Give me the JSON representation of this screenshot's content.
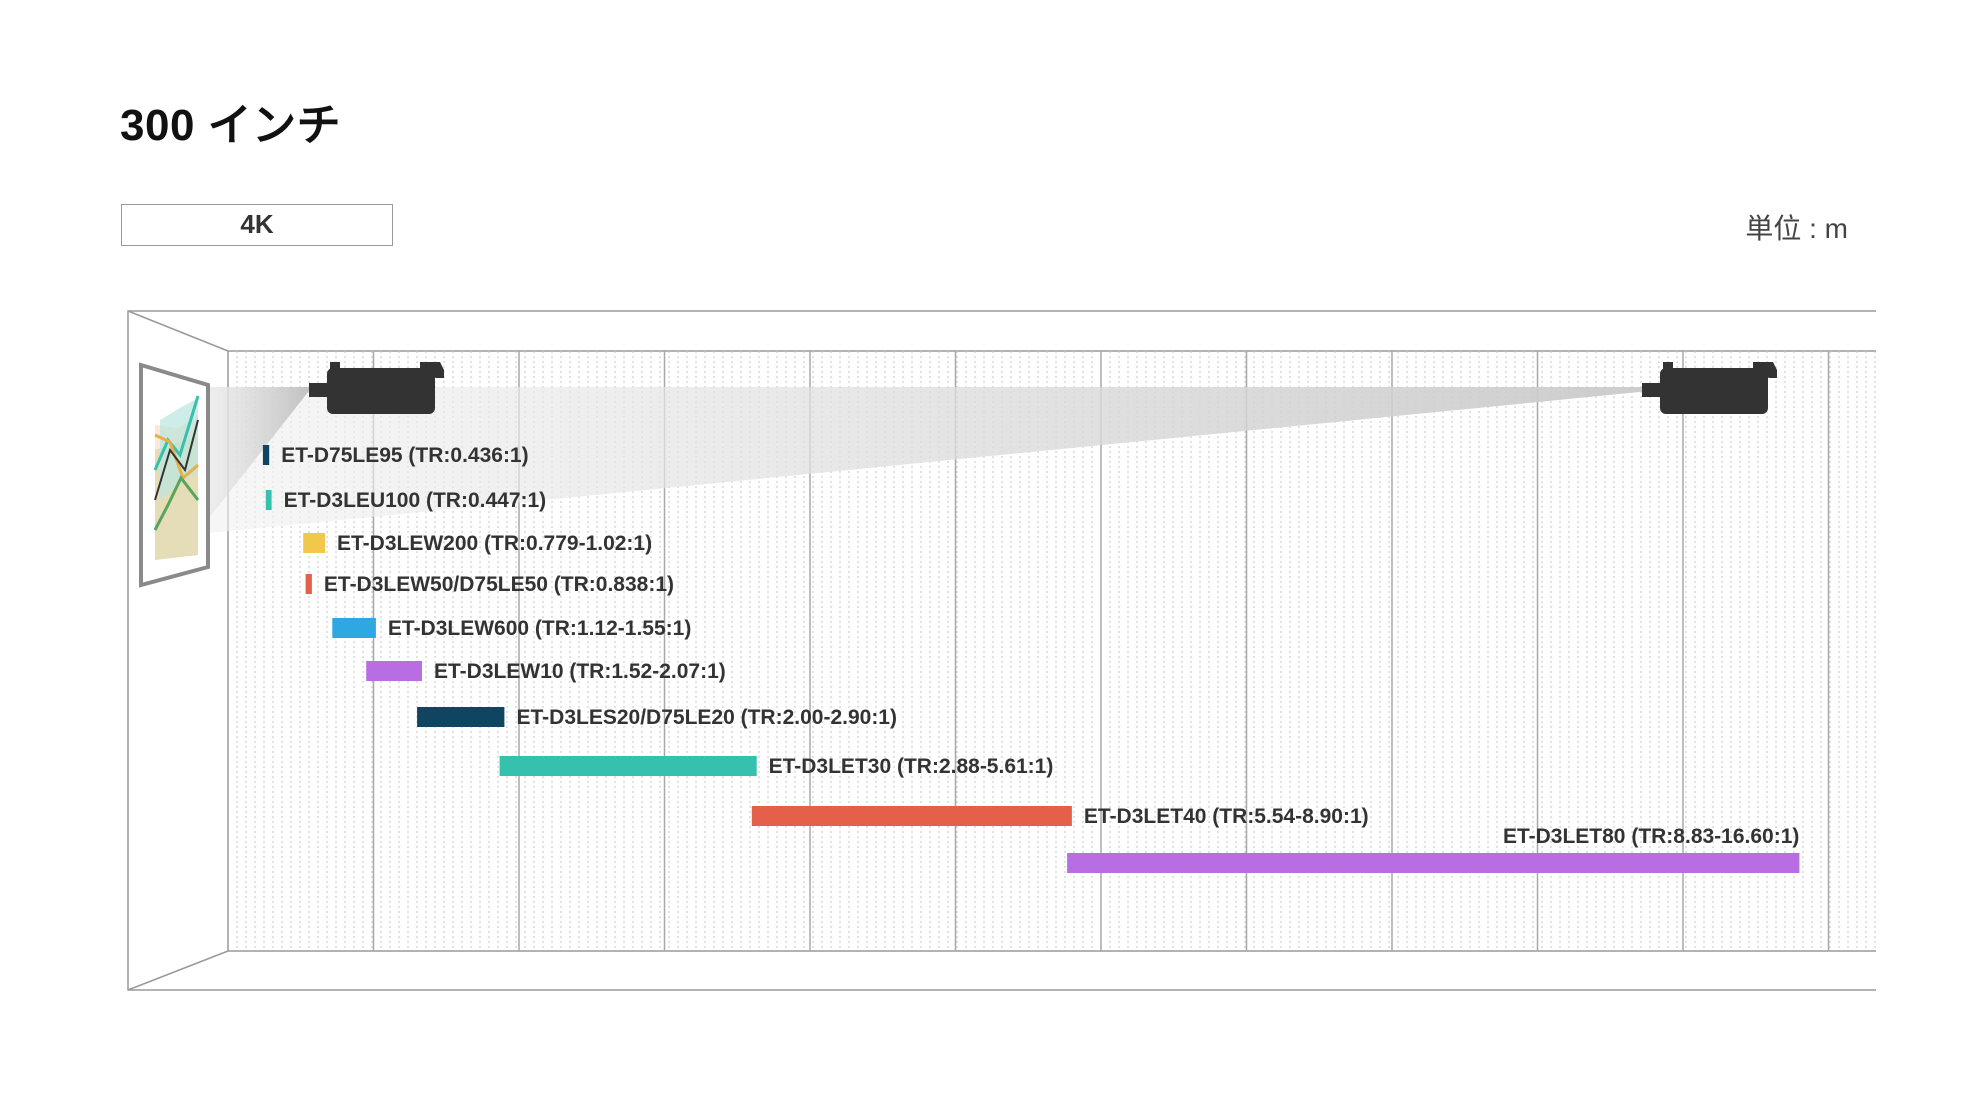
{
  "header": {
    "title": "300 インチ",
    "resolution_tab": "4K",
    "unit": "単位 : m"
  },
  "colors": {
    "navy": "#0f4560",
    "teal": "#36c1ae",
    "yellow": "#f1c84c",
    "red": "#e5604a",
    "blue": "#2ea7e2",
    "purple": "#b86ee2",
    "grid": "#a8a8a8",
    "beam": "#d0d0d0",
    "projector": "#333333"
  },
  "chart_data": {
    "type": "bar",
    "x_unit": "m",
    "xlim": [
      0,
      36
    ],
    "major_tick_step": 3,
    "series": [
      {
        "label": "ET-D75LE95 (TR:0.436:1)",
        "min": 0.72,
        "max": 0.85,
        "color": "navy"
      },
      {
        "label": "ET-D3LEU100 (TR:0.447:1)",
        "min": 0.78,
        "max": 0.9,
        "color": "teal"
      },
      {
        "label": "ET-D3LEW200 (TR:0.779-1.02:1)",
        "min": 1.55,
        "max": 2.0,
        "color": "yellow"
      },
      {
        "label": "ET-D3LEW50/D75LE50 (TR:0.838:1)",
        "min": 1.6,
        "max": 1.73,
        "color": "red"
      },
      {
        "label": "ET-D3LEW600 (TR:1.12-1.55:1)",
        "min": 2.15,
        "max": 3.05,
        "color": "blue"
      },
      {
        "label": "ET-D3LEW10 (TR:1.52-2.07:1)",
        "min": 2.85,
        "max": 4.0,
        "color": "purple"
      },
      {
        "label": "ET-D3LES20/D75LE20 (TR:2.00-2.90:1)",
        "min": 3.9,
        "max": 5.7,
        "color": "navy"
      },
      {
        "label": "ET-D3LET30 (TR:2.88-5.61:1)",
        "min": 5.6,
        "max": 10.9,
        "color": "teal"
      },
      {
        "label": "ET-D3LET40 (TR:5.54-8.90:1)",
        "min": 10.8,
        "max": 17.4,
        "color": "red"
      },
      {
        "label": "ET-D3LET80 (TR:8.83-16.60:1)",
        "min": 17.3,
        "max": 32.4,
        "color": "purple"
      }
    ]
  }
}
